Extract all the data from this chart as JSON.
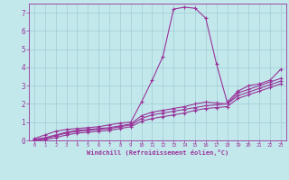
{
  "xlabel": "Windchill (Refroidissement éolien,°C)",
  "ylabel": "",
  "bg_color": "#c2e8ec",
  "line_color": "#993399",
  "grid_color": "#a0cdd4",
  "xlim": [
    -0.5,
    23.5
  ],
  "ylim": [
    0,
    7.5
  ],
  "xticks": [
    0,
    1,
    2,
    3,
    4,
    5,
    6,
    7,
    8,
    9,
    10,
    11,
    12,
    13,
    14,
    15,
    16,
    17,
    18,
    19,
    20,
    21,
    22,
    23
  ],
  "yticks": [
    0,
    1,
    2,
    3,
    4,
    5,
    6,
    7
  ],
  "lines": [
    {
      "x": [
        0,
        1,
        2,
        3,
        4,
        5,
        6,
        7,
        8,
        9,
        10,
        11,
        12,
        13,
        14,
        15,
        16,
        17,
        18,
        19,
        20,
        21,
        22,
        23
      ],
      "y": [
        0.1,
        0.3,
        0.5,
        0.6,
        0.65,
        0.7,
        0.75,
        0.85,
        0.95,
        1.0,
        2.1,
        3.3,
        4.6,
        7.2,
        7.3,
        7.25,
        6.7,
        4.2,
        2.1,
        2.7,
        3.0,
        3.1,
        3.3,
        3.9
      ]
    },
    {
      "x": [
        0,
        1,
        2,
        3,
        4,
        5,
        6,
        7,
        8,
        9,
        10,
        11,
        12,
        13,
        14,
        15,
        16,
        17,
        18,
        19,
        20,
        21,
        22,
        23
      ],
      "y": [
        0.05,
        0.15,
        0.3,
        0.45,
        0.55,
        0.6,
        0.65,
        0.7,
        0.8,
        0.9,
        1.35,
        1.55,
        1.65,
        1.75,
        1.85,
        2.0,
        2.1,
        2.05,
        2.0,
        2.6,
        2.8,
        3.0,
        3.2,
        3.4
      ]
    },
    {
      "x": [
        0,
        1,
        2,
        3,
        4,
        5,
        6,
        7,
        8,
        9,
        10,
        11,
        12,
        13,
        14,
        15,
        16,
        17,
        18,
        19,
        20,
        21,
        22,
        23
      ],
      "y": [
        0.05,
        0.1,
        0.25,
        0.4,
        0.5,
        0.55,
        0.6,
        0.65,
        0.75,
        0.85,
        1.2,
        1.4,
        1.5,
        1.6,
        1.7,
        1.8,
        1.9,
        1.95,
        2.0,
        2.45,
        2.65,
        2.85,
        3.05,
        3.25
      ]
    },
    {
      "x": [
        0,
        1,
        2,
        3,
        4,
        5,
        6,
        7,
        8,
        9,
        10,
        11,
        12,
        13,
        14,
        15,
        16,
        17,
        18,
        19,
        20,
        21,
        22,
        23
      ],
      "y": [
        0.0,
        0.05,
        0.15,
        0.3,
        0.4,
        0.45,
        0.5,
        0.55,
        0.65,
        0.75,
        1.05,
        1.2,
        1.3,
        1.4,
        1.5,
        1.65,
        1.75,
        1.8,
        1.85,
        2.3,
        2.5,
        2.7,
        2.9,
        3.1
      ]
    }
  ]
}
